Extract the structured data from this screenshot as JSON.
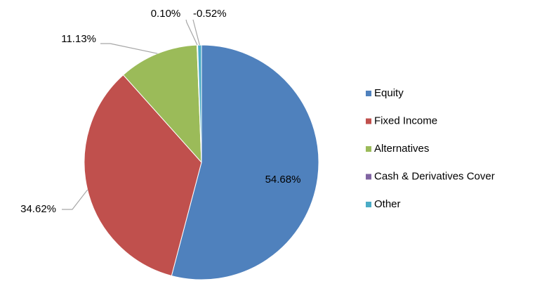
{
  "chart_data": {
    "type": "pie",
    "categories": [
      "Equity",
      "Fixed Income",
      "Alternatives",
      "Cash & Derivatives Cover",
      "Other"
    ],
    "values": [
      54.68,
      34.62,
      11.13,
      0.1,
      -0.52
    ],
    "value_labels": [
      "54.68%",
      "34.62%",
      "11.13%",
      "0.10%",
      "-0.52%"
    ],
    "colors": [
      "#4f81bd",
      "#c0504d",
      "#9bbb59",
      "#8064a2",
      "#4bacc6"
    ],
    "legend": "right"
  }
}
